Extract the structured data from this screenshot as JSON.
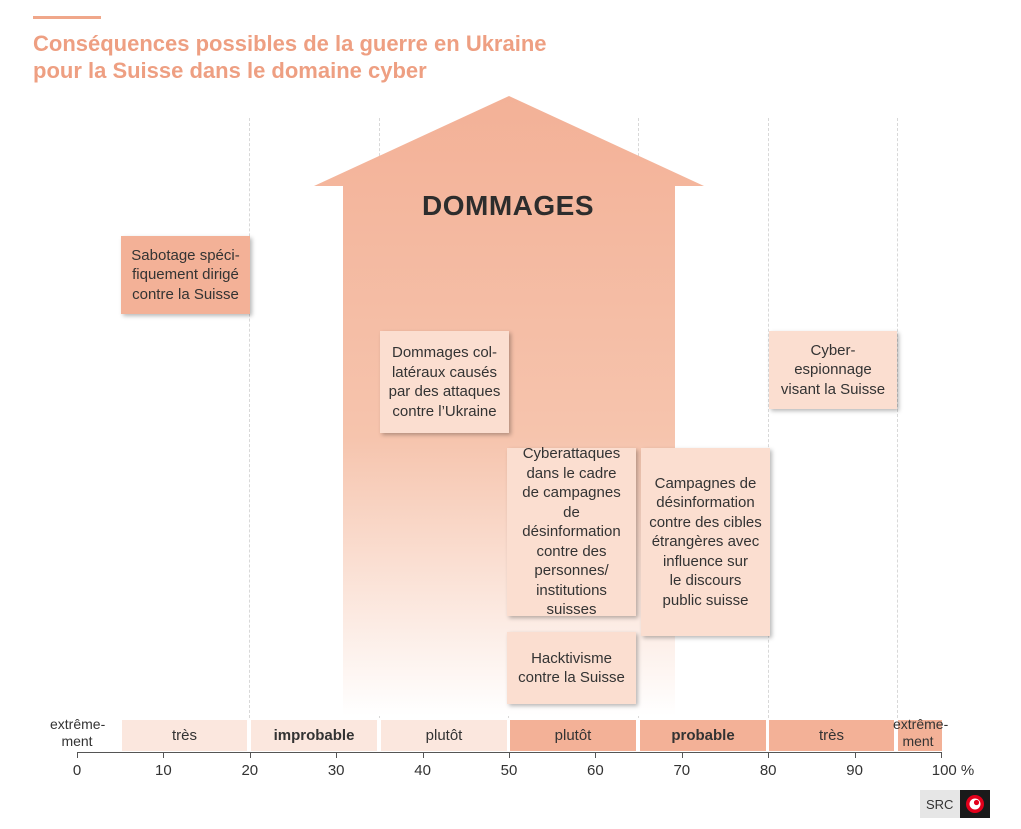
{
  "title": {
    "line1": "Conséquences possibles de la guerre en Ukraine",
    "line2": "pour la Suisse dans le domaine cyber"
  },
  "arrow_label": "DOMMAGES",
  "boxes": {
    "sabotage": "Sabotage spéci-\nfiquement dirigé\ncontre la Suisse",
    "collateral": "Dommages col-\nlatéraux causés\npar des attaques\ncontre l’Ukraine",
    "espionnage": "Cyber-\nespionnage\nvisant la Suisse",
    "cyberattaques": "Cyberattaques\ndans le cadre\nde campagnes de\ndésinformation\ncontre des\npersonnes/\ninstitutions\nsuisses",
    "campagnes": "Campagnes de\ndésinformation\ncontre des cibles\nétrangères avec\ninfluence sur\nle discours\npublic suisse",
    "hacktivisme": "Hacktivisme\ncontre la Suisse"
  },
  "scale": {
    "left_edge": "extrême-\nment",
    "seg1": "très",
    "seg2": "improbable",
    "seg3": "plutôt",
    "seg4": "plutôt",
    "seg5": "probable",
    "seg6": "très",
    "right_edge": "extrême-\nment"
  },
  "axis_ticks": [
    "0",
    "10",
    "20",
    "30",
    "40",
    "50",
    "60",
    "70",
    "80",
    "90",
    "100 %"
  ],
  "source": "SRC",
  "colors": {
    "title": "#ee9f82",
    "arrow": "#f3b197",
    "box_dark": "#f3b197",
    "box_light": "#fbded0",
    "logo_red": "#e3001b"
  }
}
